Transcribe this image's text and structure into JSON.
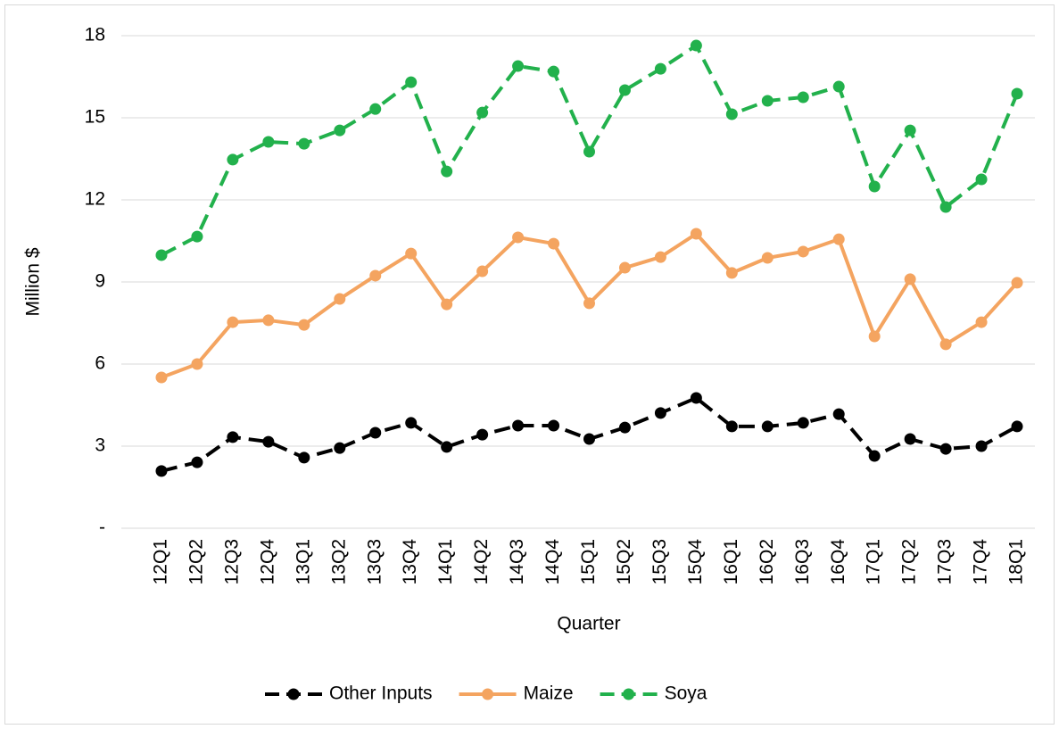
{
  "chart_data": {
    "type": "line",
    "x_label": "Quarter",
    "y_label": "Million $",
    "categories": [
      "12Q1",
      "12Q2",
      "12Q3",
      "12Q4",
      "13Q1",
      "13Q2",
      "13Q3",
      "13Q4",
      "14Q1",
      "14Q2",
      "14Q3",
      "14Q4",
      "15Q1",
      "15Q2",
      "15Q3",
      "15Q4",
      "16Q1",
      "16Q2",
      "16Q3",
      "16Q4",
      "17Q1",
      "17Q2",
      "17Q3",
      "17Q4",
      "18Q1"
    ],
    "series": [
      {
        "name": "Other Inputs",
        "color": "#000000",
        "dashed": true,
        "values": [
          2.09,
          2.41,
          3.33,
          3.16,
          2.58,
          2.93,
          3.49,
          3.85,
          2.97,
          3.42,
          3.75,
          3.75,
          3.26,
          3.68,
          4.21,
          4.76,
          3.72,
          3.72,
          3.85,
          4.17,
          2.64,
          3.26,
          2.9,
          3.0,
          3.72
        ]
      },
      {
        "name": "Maize",
        "color": "#f4a460",
        "dashed": false,
        "values": [
          5.51,
          6.0,
          7.53,
          7.6,
          7.43,
          8.38,
          9.23,
          10.04,
          8.18,
          9.39,
          10.63,
          10.4,
          8.22,
          9.52,
          9.91,
          10.76,
          9.33,
          9.88,
          10.11,
          10.56,
          7.01,
          9.1,
          6.72,
          7.53,
          8.97
        ]
      },
      {
        "name": "Soya",
        "color": "#22b14c",
        "dashed": true,
        "values": [
          9.98,
          10.66,
          13.47,
          14.12,
          14.05,
          14.54,
          15.32,
          16.3,
          13.04,
          15.19,
          16.89,
          16.69,
          13.76,
          16.01,
          16.79,
          17.64,
          15.13,
          15.62,
          15.75,
          16.14,
          12.49,
          14.54,
          11.74,
          12.75,
          15.88
        ]
      }
    ],
    "ylim": [
      0,
      18
    ],
    "yticks": [
      {
        "value": 0,
        "label": "-"
      },
      3,
      6,
      9,
      12,
      15,
      18
    ],
    "grid": true,
    "legend": "bottom"
  }
}
